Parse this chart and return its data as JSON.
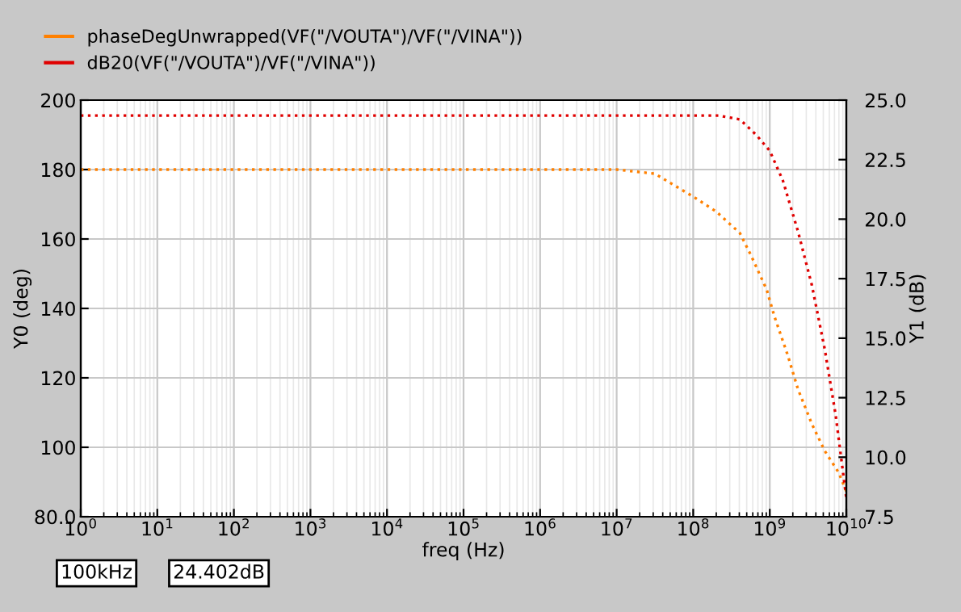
{
  "chart_data": {
    "type": "line",
    "xlabel": "freq (Hz)",
    "ylabel": "Y0 (deg)",
    "y2label": "Y1 (dB)",
    "log": "x",
    "grid": true,
    "legend": "top left",
    "line_style": "dotted",
    "marker": "none",
    "xlim": [
      1,
      10000000000
    ],
    "xticks": [
      {
        "value": 1,
        "label": "10$^{0}$"
      },
      {
        "value": 10,
        "label": "10$^{1}$"
      },
      {
        "value": 100,
        "label": "10$^{2}$"
      },
      {
        "value": 1000,
        "label": "10$^{3}$"
      },
      {
        "value": 10000,
        "label": "10$^{4}$"
      },
      {
        "value": 100000,
        "label": "10$^{5}$"
      },
      {
        "value": 1000000,
        "label": "10$^{6}$"
      },
      {
        "value": 10000000,
        "label": "10$^{7}$"
      },
      {
        "value": 100000000,
        "label": "10$^{8}$"
      },
      {
        "value": 1000000000,
        "label": "10$^{9}$"
      },
      {
        "value": 10000000000,
        "label": "10$^{10}$"
      }
    ],
    "ylim": [
      80,
      200
    ],
    "yticks": [
      {
        "value": 80,
        "label": "80.0"
      },
      100,
      120,
      140,
      160,
      180,
      200
    ],
    "y2lim": [
      7.5,
      25
    ],
    "y2ticks": [
      7.5,
      {
        "value": 10,
        "label": "10.0"
      },
      12.5,
      {
        "value": 15,
        "label": "15.0"
      },
      17.5,
      {
        "value": 20,
        "label": "20.0"
      },
      22.5,
      {
        "value": 25,
        "label": "25.0"
      }
    ],
    "series": [
      {
        "name": "phaseDegUnwrapped(VF(\"/VOUTA\")/VF(\"/VINA\"))",
        "color": "#ff8000",
        "x": [
          1,
          10000000,
          31600000,
          100000000,
          200000000,
          407000000,
          562000000,
          912000000,
          1150000000,
          1700000000,
          2340000000,
          3550000000,
          5250000000,
          7940000000,
          10000000000
        ],
        "values": [
          180,
          180,
          178.8,
          172.2,
          167.9,
          161.7,
          155.5,
          145.4,
          137.7,
          126.8,
          116.7,
          106.7,
          98.9,
          92.7,
          87.3
        ]
      },
      {
        "name": "dB20(VF(\"/VOUTA\")/VF(\"/VINA\"))",
        "color": "#e00000",
        "axis": "y2",
        "x": [
          1,
          214000000,
          407000000,
          661000000,
          1000000000,
          1480000000,
          2340000000,
          3550000000,
          5250000000,
          7240000000,
          10000000000
        ],
        "values": [
          24.35,
          24.35,
          24.19,
          23.55,
          22.87,
          21.63,
          19.48,
          17.22,
          14.5,
          11.79,
          8.28
        ]
      }
    ],
    "annotations": [
      "100kHz",
      "24.402dB"
    ]
  }
}
